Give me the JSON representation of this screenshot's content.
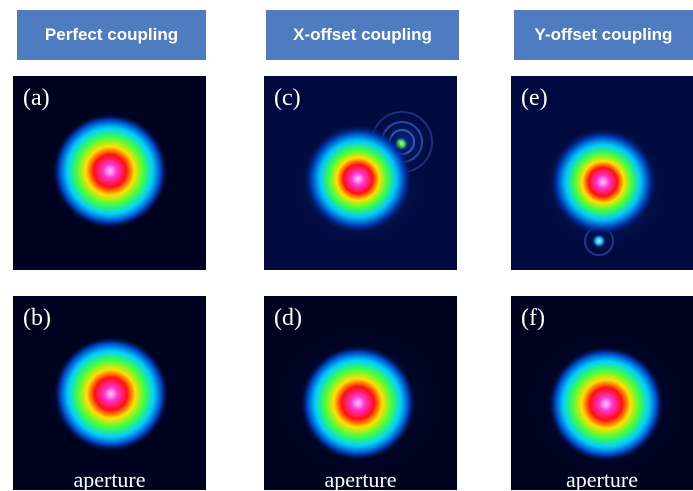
{
  "columns": [
    {
      "header": "Perfect coupling",
      "top_panel": {
        "label": "(a)"
      },
      "bottom_panel": {
        "label": "(b)",
        "caption": "aperture"
      }
    },
    {
      "header": "X-offset coupling",
      "top_panel": {
        "label": "(c)"
      },
      "bottom_panel": {
        "label": "(d)",
        "caption": "aperture"
      }
    },
    {
      "header": "Y-offset coupling",
      "top_panel": {
        "label": "(e)"
      },
      "bottom_panel": {
        "label": "(f)",
        "caption": "aperture"
      }
    }
  ],
  "colors": {
    "header_background": "#4f7cc0",
    "panel_background": "#000320"
  }
}
